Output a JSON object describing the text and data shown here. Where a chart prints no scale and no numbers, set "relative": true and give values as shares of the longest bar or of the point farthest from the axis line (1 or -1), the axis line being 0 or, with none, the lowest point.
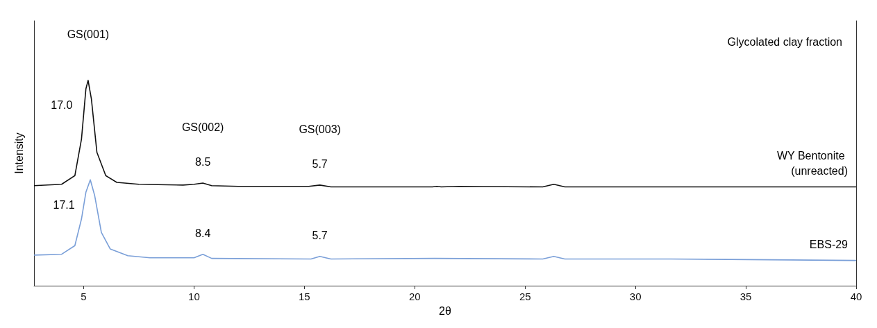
{
  "chart_data": {
    "type": "line",
    "relative": true,
    "xlabel": "2θ",
    "ylabel": "Intensity",
    "xlim": [
      2.75,
      40
    ],
    "xticks": [
      5,
      10,
      15,
      20,
      25,
      30,
      35,
      40
    ],
    "legend": false,
    "grid": false,
    "marker": "none",
    "line_style": "solid",
    "annotations": [
      "Glycolated clay fraction",
      "GS(001)",
      {
        "text": "17.0",
        "x": 5.2,
        "y": 1.0
      },
      "GS(002)",
      {
        "text": "8.5",
        "x": 10.4,
        "y": 0.5
      },
      "GS(003)",
      {
        "text": "5.7",
        "x": 15.7,
        "y": 0.49
      },
      {
        "text": "17.1",
        "x": 5.3,
        "y": 0.516
      },
      {
        "text": "8.4",
        "x": 10.4,
        "y": 0.153
      },
      {
        "text": "5.7",
        "x": 15.7,
        "y": 0.143
      }
    ],
    "series": [
      {
        "name": "WY Bentonite (unreacted)",
        "color": "#111111",
        "x": [
          2.75,
          4.0,
          4.6,
          4.9,
          5.1,
          5.2,
          5.35,
          5.6,
          6.0,
          6.5,
          7.5,
          9.5,
          10.0,
          10.4,
          10.8,
          12,
          15.2,
          15.7,
          16.2,
          20.8,
          21.0,
          21.2,
          22,
          25.8,
          26.3,
          26.8,
          31.6,
          40
        ],
        "values": [
          0.487,
          0.494,
          0.536,
          0.714,
          0.958,
          1.0,
          0.909,
          0.649,
          0.536,
          0.503,
          0.494,
          0.49,
          0.494,
          0.5,
          0.487,
          0.484,
          0.484,
          0.49,
          0.481,
          0.481,
          0.484,
          0.481,
          0.484,
          0.481,
          0.494,
          0.481,
          0.481,
          0.481
        ]
      },
      {
        "name": "EBS-29",
        "color": "#7a9fd8",
        "x": [
          2.75,
          4.0,
          4.6,
          4.9,
          5.1,
          5.3,
          5.5,
          5.8,
          6.2,
          7,
          8,
          10,
          10.4,
          10.8,
          15.3,
          15.7,
          16.2,
          20.9,
          25.8,
          26.3,
          26.8,
          31.6,
          40
        ],
        "values": [
          0.149,
          0.153,
          0.195,
          0.325,
          0.455,
          0.516,
          0.438,
          0.26,
          0.179,
          0.146,
          0.136,
          0.136,
          0.153,
          0.133,
          0.13,
          0.143,
          0.13,
          0.133,
          0.13,
          0.143,
          0.13,
          0.13,
          0.123
        ]
      }
    ]
  }
}
